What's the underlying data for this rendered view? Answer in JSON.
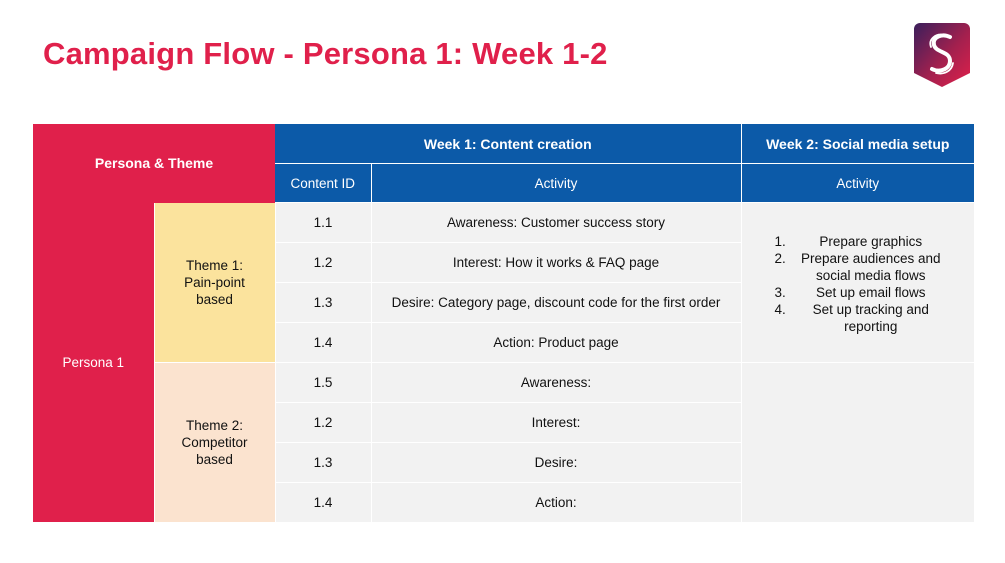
{
  "slide": {
    "title": "Campaign Flow - Persona 1: Week 1-2",
    "logo_icon": "stylized-s-logo-icon"
  },
  "table": {
    "headers": {
      "persona_theme": "Persona & Theme",
      "week1": "Week 1: Content creation",
      "week2": "Week 2: Social media setup",
      "content_id": "Content ID",
      "activity": "Activity",
      "week2_activity": "Activity"
    },
    "persona": "Persona 1",
    "themes": [
      {
        "label": "Theme 1: Pain-point based",
        "rows": [
          {
            "id": "1.1",
            "activity": "Awareness: Customer success story"
          },
          {
            "id": "1.2",
            "activity": "Interest: How it works & FAQ page"
          },
          {
            "id": "1.3",
            "activity": "Desire: Category page, discount code for the first order"
          },
          {
            "id": "1.4",
            "activity": "Action: Product page"
          }
        ]
      },
      {
        "label": "Theme 2: Competitor based",
        "rows": [
          {
            "id": "1.5",
            "activity": "Awareness:"
          },
          {
            "id": "1.2",
            "activity": "Interest:"
          },
          {
            "id": "1.3",
            "activity": "Desire:"
          },
          {
            "id": "1.4",
            "activity": "Action:"
          }
        ]
      }
    ],
    "week2_tasks": [
      {
        "num": "1.",
        "text": "Prepare graphics"
      },
      {
        "num": "2.",
        "text": "Prepare audiences and social media flows"
      },
      {
        "num": "3.",
        "text": "Set up email flows"
      },
      {
        "num": "4.",
        "text": "Set up tracking and reporting"
      }
    ]
  },
  "colors": {
    "accent_red": "#e0204b",
    "header_blue": "#0c5aa8",
    "theme1_yellow": "#fbe39d",
    "theme2_peach": "#fbe3cf",
    "cell_gray": "#f2f2f2"
  }
}
